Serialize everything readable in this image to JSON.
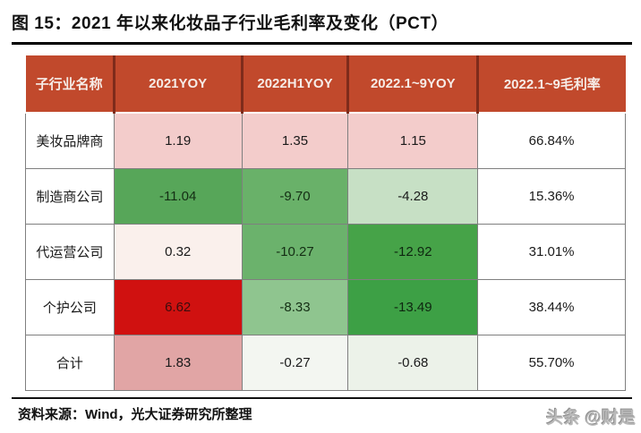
{
  "title": "图 15：2021 年以来化妆品子行业毛利率及变化（PCT）",
  "table": {
    "columns": [
      "子行业名称",
      "2021YOY",
      "2022H1YOY",
      "2022.1~9YOY",
      "2022.1~9毛利率"
    ],
    "rows": [
      {
        "label": "美妆品牌商",
        "cells": [
          {
            "text": "1.19",
            "bg": "#F3CCCB",
            "fg": "#1A1A1A"
          },
          {
            "text": "1.35",
            "bg": "#F3CCCB",
            "fg": "#1A1A1A"
          },
          {
            "text": "1.15",
            "bg": "#F3CCCB",
            "fg": "#1A1A1A"
          }
        ],
        "margin": "66.84%"
      },
      {
        "label": "制造商公司",
        "cells": [
          {
            "text": "-11.04",
            "bg": "#57A659",
            "fg": "#142E14"
          },
          {
            "text": "-9.70",
            "bg": "#69B169",
            "fg": "#142E14"
          },
          {
            "text": "-4.28",
            "bg": "#C7E0C5",
            "fg": "#1A1A1A"
          }
        ],
        "margin": "15.36%"
      },
      {
        "label": "代运营公司",
        "cells": [
          {
            "text": "0.32",
            "bg": "#FAF0EC",
            "fg": "#1A1A1A"
          },
          {
            "text": "-10.27",
            "bg": "#6BB26C",
            "fg": "#142E14"
          },
          {
            "text": "-12.92",
            "bg": "#46A348",
            "fg": "#0E2610"
          }
        ],
        "margin": "31.01%"
      },
      {
        "label": "个护公司",
        "cells": [
          {
            "text": "6.62",
            "bg": "#D01110",
            "fg": "#3A0D0D"
          },
          {
            "text": "-8.33",
            "bg": "#8FC58F",
            "fg": "#142E14"
          },
          {
            "text": "-13.49",
            "bg": "#3DA045",
            "fg": "#0E2610"
          }
        ],
        "margin": "38.44%"
      },
      {
        "label": "合计",
        "cells": [
          {
            "text": "1.83",
            "bg": "#E1A5A5",
            "fg": "#1A1A1A"
          },
          {
            "text": "-0.27",
            "bg": "#F3F6F1",
            "fg": "#1A1A1A"
          },
          {
            "text": "-0.68",
            "bg": "#ECF2E9",
            "fg": "#1A1A1A"
          }
        ],
        "margin": "55.70%"
      }
    ]
  },
  "footer": {
    "source": "资料来源：Wind，光大证券研究所整理",
    "watermark": "头条 @财是"
  },
  "colors": {
    "header_bg": "#C1492C",
    "header_divider": "#7E2B1B",
    "header_text": "#F6ECE7",
    "grid_border": "#7F7F7F",
    "rule_black": "#000000",
    "positive_strong": "#D01110",
    "positive_light": "#F3CCCB",
    "negative_strong": "#3DA045",
    "negative_light": "#ECF2E9"
  },
  "chart_data": {
    "type": "table",
    "title": "图 15：2021 年以来化妆品子行业毛利率及变化（PCT）",
    "columns": [
      "子行业名称",
      "2021YOY",
      "2022H1YOY",
      "2022.1~9YOY",
      "2022.1~9毛利率"
    ],
    "rows": [
      [
        "美妆品牌商",
        1.19,
        1.35,
        1.15,
        "66.84%"
      ],
      [
        "制造商公司",
        -11.04,
        -9.7,
        -4.28,
        "15.36%"
      ],
      [
        "代运营公司",
        0.32,
        -10.27,
        -12.92,
        "31.01%"
      ],
      [
        "个护公司",
        6.62,
        -8.33,
        -13.49,
        "38.44%"
      ],
      [
        "合计",
        1.83,
        -0.27,
        -0.68,
        "55.70%"
      ]
    ],
    "layout_hints": "YOY change columns colored as red(positive)/green(negative) diverging heatmap; last column plain white; units PCT",
    "source_note": "资料来源：Wind，光大证券研究所整理"
  }
}
